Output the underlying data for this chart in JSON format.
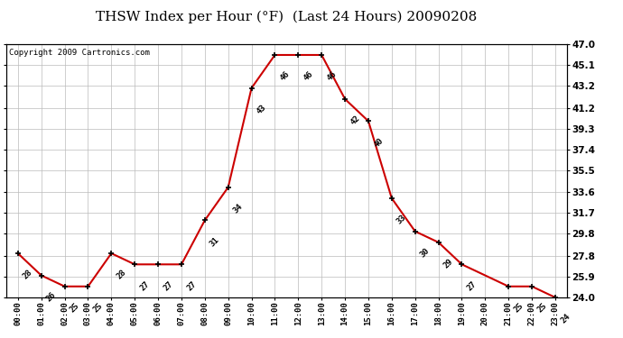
{
  "title": "THSW Index per Hour (°F)  (Last 24 Hours) 20090208",
  "copyright": "Copyright 2009 Cartronics.com",
  "hours": [
    "00:00",
    "01:00",
    "02:00",
    "03:00",
    "04:00",
    "05:00",
    "06:00",
    "07:00",
    "08:00",
    "09:00",
    "10:00",
    "11:00",
    "12:00",
    "13:00",
    "14:00",
    "15:00",
    "16:00",
    "17:00",
    "18:00",
    "19:00",
    "20:00",
    "21:00",
    "22:00",
    "23:00"
  ],
  "x_indices": [
    0,
    1,
    2,
    3,
    4,
    5,
    6,
    7,
    8,
    9,
    10,
    11,
    12,
    13,
    14,
    15,
    16,
    17,
    18,
    19,
    21,
    22,
    23
  ],
  "values": [
    28,
    26,
    25,
    25,
    28,
    27,
    27,
    27,
    31,
    34,
    43,
    46,
    46,
    46,
    42,
    40,
    33,
    30,
    29,
    27,
    25,
    25,
    24
  ],
  "ylim_min": 24.0,
  "ylim_max": 47.0,
  "yticks": [
    47.0,
    45.1,
    43.2,
    41.2,
    39.3,
    37.4,
    35.5,
    33.6,
    31.7,
    29.8,
    27.8,
    25.9,
    24.0
  ],
  "ytick_labels": [
    "47.0",
    "45.1",
    "43.2",
    "41.2",
    "39.3",
    "37.4",
    "35.5",
    "33.6",
    "31.7",
    "29.8",
    "27.8",
    "25.9",
    "24.0"
  ],
  "line_color": "#cc0000",
  "bg_color": "#ffffff",
  "grid_color": "#bbbbbb",
  "title_fontsize": 11,
  "copyright_fontsize": 6.5,
  "annot_fontsize": 6.5
}
